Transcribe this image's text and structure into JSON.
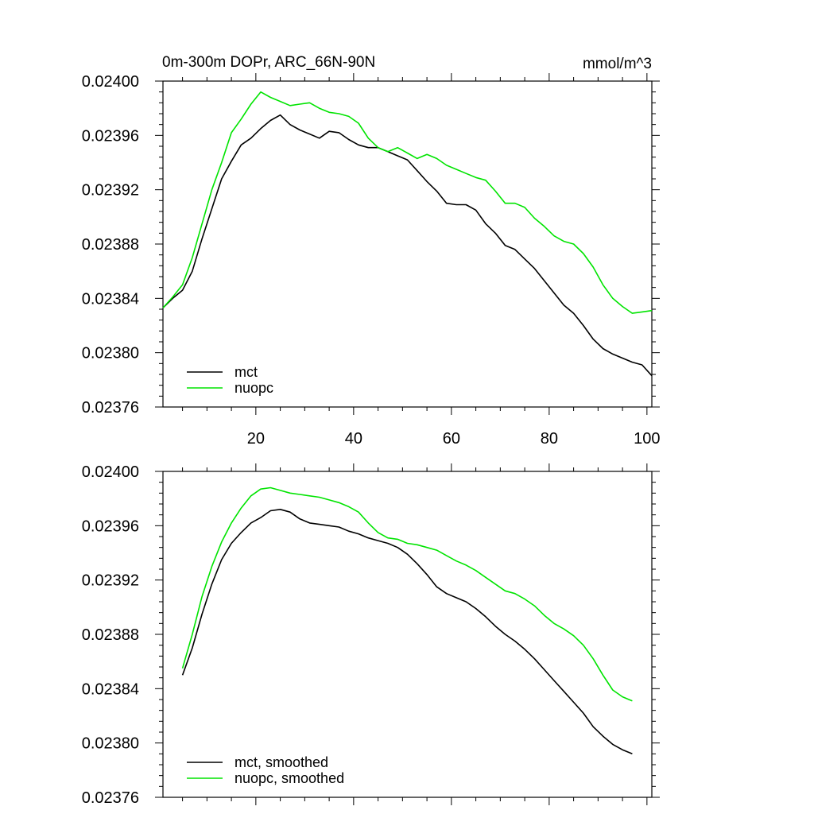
{
  "figure": {
    "title_left": "0m-300m DOPr, ARC_66N-90N",
    "title_right": "mmol/m^3"
  },
  "chart_data": [
    {
      "type": "line",
      "title": "0m-300m DOPr, ARC_66N-90N",
      "units": "mmol/m^3",
      "xlabel": "",
      "ylabel": "",
      "xlim": [
        1,
        101
      ],
      "ylim": [
        0.02376,
        0.024
      ],
      "xticks": [
        20,
        40,
        60,
        80,
        100
      ],
      "xtick_labels": [
        "20",
        "40",
        "60",
        "80",
        "100"
      ],
      "yticks": [
        0.02376,
        0.0238,
        0.02384,
        0.02388,
        0.02392,
        0.02396,
        0.024
      ],
      "ytick_labels": [
        "0.02376",
        "0.02380",
        "0.02384",
        "0.02388",
        "0.02392",
        "0.02396",
        "0.02400"
      ],
      "grid": false,
      "legend_position": "bottom-left",
      "series": [
        {
          "name": "mct",
          "color": "#000000",
          "x": [
            1,
            3,
            5,
            7,
            9,
            11,
            13,
            15,
            17,
            19,
            21,
            23,
            25,
            27,
            29,
            31,
            33,
            35,
            37,
            39,
            41,
            43,
            45,
            47,
            49,
            51,
            53,
            55,
            57,
            59,
            61,
            63,
            65,
            67,
            69,
            71,
            73,
            75,
            77,
            79,
            81,
            83,
            85,
            87,
            89,
            91,
            93,
            95,
            97,
            99,
            101
          ],
          "values": [
            0.023833,
            0.02384,
            0.023846,
            0.02386,
            0.023884,
            0.023906,
            0.023928,
            0.023941,
            0.023953,
            0.023958,
            0.023965,
            0.023971,
            0.023975,
            0.023968,
            0.023964,
            0.023961,
            0.023958,
            0.023963,
            0.023962,
            0.023957,
            0.023953,
            0.023951,
            0.023951,
            0.023948,
            0.023945,
            0.023942,
            0.023934,
            0.023926,
            0.023919,
            0.02391,
            0.023909,
            0.023909,
            0.023905,
            0.023895,
            0.023888,
            0.023879,
            0.023876,
            0.023869,
            0.023862,
            0.023853,
            0.023844,
            0.023835,
            0.023829,
            0.02382,
            0.02381,
            0.023803,
            0.023799,
            0.023796,
            0.023793,
            0.023791,
            0.023783
          ]
        },
        {
          "name": "nuopc",
          "color": "#00e400",
          "x": [
            1,
            3,
            5,
            7,
            9,
            11,
            13,
            15,
            17,
            19,
            21,
            23,
            25,
            27,
            29,
            31,
            33,
            35,
            37,
            39,
            41,
            43,
            45,
            47,
            49,
            51,
            53,
            55,
            57,
            59,
            61,
            63,
            65,
            67,
            69,
            71,
            73,
            75,
            77,
            79,
            81,
            83,
            85,
            87,
            89,
            91,
            93,
            95,
            97,
            99,
            101
          ],
          "values": [
            0.023833,
            0.023841,
            0.02385,
            0.02387,
            0.023895,
            0.02392,
            0.02394,
            0.023962,
            0.023972,
            0.023983,
            0.023992,
            0.023988,
            0.023985,
            0.023982,
            0.023983,
            0.023984,
            0.02398,
            0.023977,
            0.023976,
            0.023974,
            0.023969,
            0.023958,
            0.023951,
            0.023948,
            0.023951,
            0.023947,
            0.023943,
            0.023946,
            0.023943,
            0.023938,
            0.023935,
            0.023932,
            0.023929,
            0.023927,
            0.023919,
            0.02391,
            0.02391,
            0.023907,
            0.023899,
            0.023893,
            0.023886,
            0.023882,
            0.02388,
            0.023873,
            0.023863,
            0.02385,
            0.02384,
            0.023834,
            0.023829,
            0.02383,
            0.023831
          ]
        }
      ]
    },
    {
      "type": "line",
      "title": "",
      "xlabel": "",
      "ylabel": "",
      "xlim": [
        1,
        101
      ],
      "ylim": [
        0.02376,
        0.024
      ],
      "xticks": [
        20,
        40,
        60,
        80,
        100
      ],
      "xtick_labels": [],
      "yticks": [
        0.02376,
        0.0238,
        0.02384,
        0.02388,
        0.02392,
        0.02396,
        0.024
      ],
      "ytick_labels": [
        "0.02376",
        "0.02380",
        "0.02384",
        "0.02388",
        "0.02392",
        "0.02396",
        "0.02400"
      ],
      "grid": false,
      "legend_position": "bottom-left",
      "series": [
        {
          "name": "mct, smoothed",
          "color": "#000000",
          "x": [
            5,
            7,
            9,
            11,
            13,
            15,
            17,
            19,
            21,
            23,
            25,
            27,
            29,
            31,
            33,
            35,
            37,
            39,
            41,
            43,
            45,
            47,
            49,
            51,
            53,
            55,
            57,
            59,
            61,
            63,
            65,
            67,
            69,
            71,
            73,
            75,
            77,
            79,
            81,
            83,
            85,
            87,
            89,
            91,
            93,
            95,
            97
          ],
          "values": [
            0.02385,
            0.02387,
            0.023895,
            0.023917,
            0.023935,
            0.023947,
            0.023955,
            0.023962,
            0.023966,
            0.023971,
            0.023972,
            0.02397,
            0.023965,
            0.023962,
            0.023961,
            0.02396,
            0.023959,
            0.023956,
            0.023954,
            0.023951,
            0.023949,
            0.023947,
            0.023944,
            0.023939,
            0.023932,
            0.023924,
            0.023915,
            0.02391,
            0.023907,
            0.023904,
            0.023899,
            0.023893,
            0.023886,
            0.02388,
            0.023875,
            0.023869,
            0.023862,
            0.023854,
            0.023846,
            0.023838,
            0.02383,
            0.023822,
            0.023812,
            0.023805,
            0.023799,
            0.023795,
            0.023792
          ]
        },
        {
          "name": "nuopc, smoothed",
          "color": "#00e400",
          "x": [
            5,
            7,
            9,
            11,
            13,
            15,
            17,
            19,
            21,
            23,
            25,
            27,
            29,
            31,
            33,
            35,
            37,
            39,
            41,
            43,
            45,
            47,
            49,
            51,
            53,
            55,
            57,
            59,
            61,
            63,
            65,
            67,
            69,
            71,
            73,
            75,
            77,
            79,
            81,
            83,
            85,
            87,
            89,
            91,
            93,
            95,
            97
          ],
          "values": [
            0.023855,
            0.02388,
            0.023908,
            0.02393,
            0.023948,
            0.023962,
            0.023973,
            0.023982,
            0.023987,
            0.023988,
            0.023986,
            0.023984,
            0.023983,
            0.023982,
            0.023981,
            0.023979,
            0.023977,
            0.023974,
            0.02397,
            0.023962,
            0.023955,
            0.023951,
            0.02395,
            0.023947,
            0.023946,
            0.023944,
            0.023942,
            0.023938,
            0.023934,
            0.023931,
            0.023927,
            0.023922,
            0.023917,
            0.023912,
            0.02391,
            0.023906,
            0.023901,
            0.023894,
            0.023888,
            0.023884,
            0.023879,
            0.023872,
            0.023862,
            0.02385,
            0.023839,
            0.023834,
            0.023831
          ]
        }
      ]
    }
  ]
}
